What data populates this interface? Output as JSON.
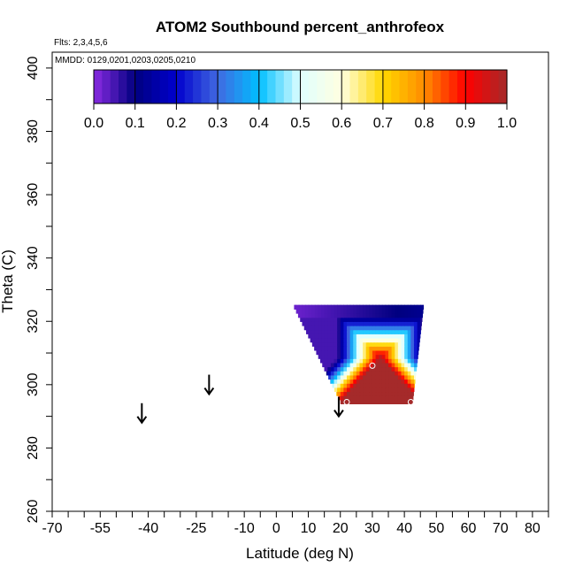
{
  "chart_data": {
    "type": "heatmap",
    "title": "ATOM2 Southbound percent_anthrofeox",
    "subtitle_flights": "Flts: 2,3,4,5,6",
    "subtitle_dates": "MMDD: 0129,0201,0203,0205,0210",
    "xlabel": "Latitude (deg N)",
    "ylabel": "Theta (C)",
    "xlim": [
      -70,
      85
    ],
    "ylim": [
      260,
      405
    ],
    "x_ticks": [
      -70,
      -55,
      -40,
      -25,
      -10,
      0,
      10,
      20,
      30,
      40,
      50,
      60,
      70,
      80
    ],
    "x_tick_labels": [
      "-70",
      "-55",
      "-40",
      "-25",
      "-10",
      "0",
      "10",
      "20",
      "30",
      "40",
      "50",
      "60",
      "70",
      "80"
    ],
    "y_ticks": [
      260,
      280,
      300,
      320,
      340,
      360,
      380,
      400
    ],
    "y_tick_labels": [
      "260",
      "280",
      "300",
      "320",
      "340",
      "360",
      "380",
      "400"
    ],
    "colorbar": {
      "min": 0.0,
      "max": 1.0,
      "tick_labels": [
        "0.0",
        "0.1",
        "0.2",
        "0.3",
        "0.4",
        "0.5",
        "0.6",
        "0.7",
        "0.8",
        "0.9",
        "1.0"
      ],
      "colors": [
        "#8a2be2",
        "#000080",
        "#0000cd",
        "#4169e1",
        "#00bfff",
        "#e0ffff",
        "#ffffe0",
        "#ffd700",
        "#ff8c00",
        "#ff0000",
        "#a52a2a"
      ]
    },
    "field": {
      "lat_range": [
        5,
        46
      ],
      "theta_range": [
        294,
        325
      ],
      "shape": "inverted trapezoid"
    },
    "arrows": [
      {
        "lat": -42,
        "theta": 288
      },
      {
        "lat": -21,
        "theta": 297
      },
      {
        "lat": 19.5,
        "theta": 290
      }
    ],
    "circles": [
      {
        "lat": 30,
        "theta": 306
      },
      {
        "lat": 22,
        "theta": 294.5
      },
      {
        "lat": 42,
        "theta": 294.5
      }
    ]
  }
}
